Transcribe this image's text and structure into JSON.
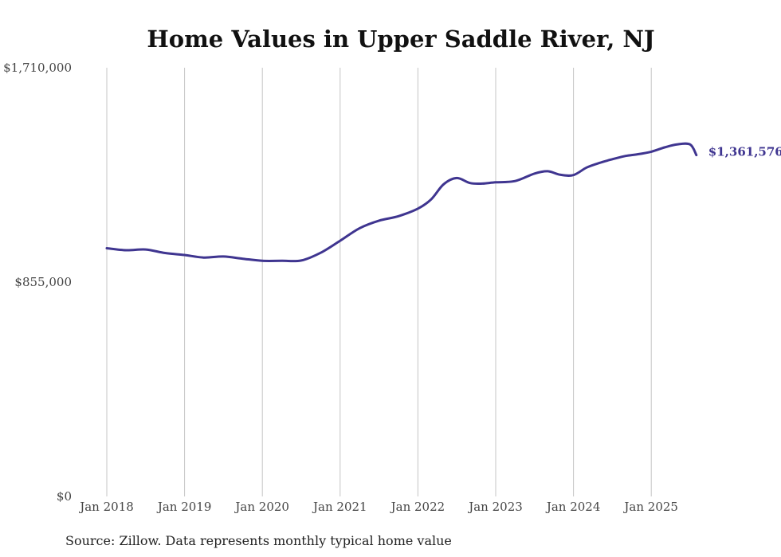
{
  "chart_data": {
    "type": "line",
    "title": "Home Values in Upper Saddle River, NJ",
    "source": "Source: Zillow. Data represents monthly typical home value",
    "ylim": [
      0,
      1710000
    ],
    "y_ticks": [
      {
        "value": 0,
        "label": "$0"
      },
      {
        "value": 855000,
        "label": "$855,000"
      },
      {
        "value": 1710000,
        "label": "$1,710,000"
      }
    ],
    "x_ticks": [
      {
        "value": 2018.0,
        "label": "Jan 2018"
      },
      {
        "value": 2019.0,
        "label": "Jan 2019"
      },
      {
        "value": 2020.0,
        "label": "Jan 2020"
      },
      {
        "value": 2021.0,
        "label": "Jan 2021"
      },
      {
        "value": 2022.0,
        "label": "Jan 2022"
      },
      {
        "value": 2023.0,
        "label": "Jan 2023"
      },
      {
        "value": 2024.0,
        "label": "Jan 2024"
      },
      {
        "value": 2025.0,
        "label": "Jan 2025"
      }
    ],
    "xlim": [
      2017.6,
      2026.2
    ],
    "grid": "vertical",
    "line_color": "#3f3590",
    "end_label": "$1,361,576",
    "series": [
      {
        "name": "Typical home value",
        "x": [
          2018.0,
          2018.25,
          2018.5,
          2018.75,
          2019.0,
          2019.25,
          2019.5,
          2019.75,
          2020.0,
          2020.25,
          2020.5,
          2020.75,
          2021.0,
          2021.25,
          2021.5,
          2021.75,
          2022.0,
          2022.17,
          2022.33,
          2022.5,
          2022.67,
          2022.83,
          2023.0,
          2023.25,
          2023.5,
          2023.67,
          2023.83,
          2024.0,
          2024.17,
          2024.33,
          2024.5,
          2024.67,
          2024.83,
          2025.0,
          2025.17,
          2025.33,
          2025.5,
          2025.58
        ],
        "values": [
          990000,
          982000,
          985000,
          971000,
          963000,
          953000,
          957000,
          948000,
          940000,
          940000,
          941000,
          972000,
          1020000,
          1070000,
          1100000,
          1118000,
          1148000,
          1185000,
          1245000,
          1270000,
          1250000,
          1248000,
          1253000,
          1258000,
          1288000,
          1297000,
          1283000,
          1282000,
          1312000,
          1330000,
          1345000,
          1358000,
          1365000,
          1375000,
          1392000,
          1404000,
          1404000,
          1361576
        ]
      }
    ]
  }
}
